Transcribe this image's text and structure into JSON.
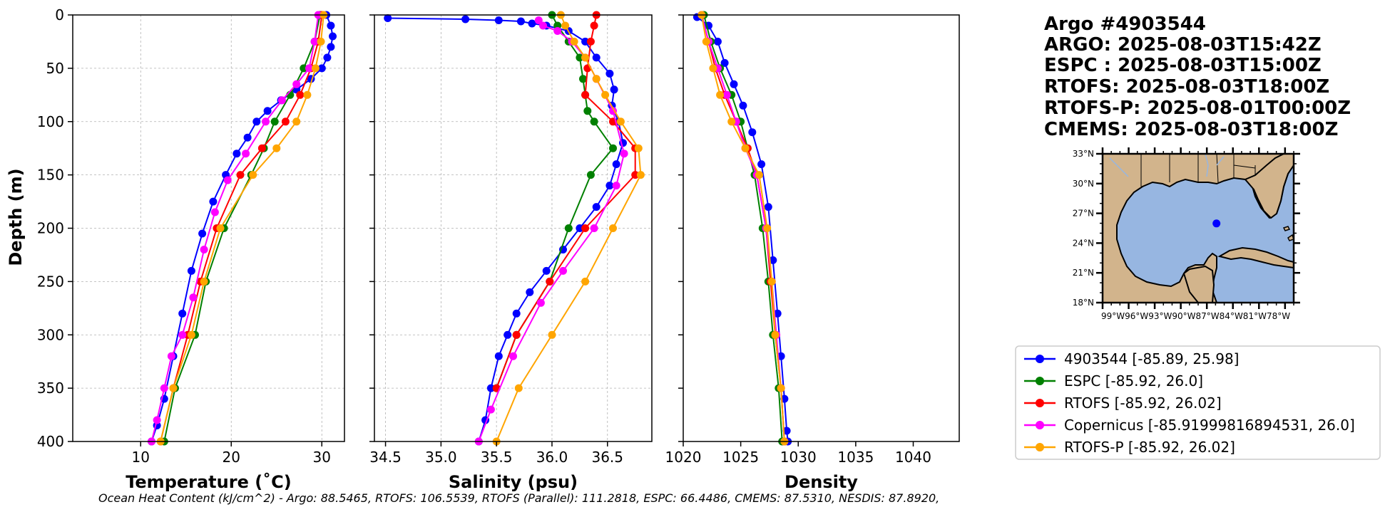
{
  "chart_data": [
    {
      "type": "line",
      "xlabel": "Temperature (˚C)",
      "ylabel": "Depth (m)",
      "xlim": [
        2.5,
        32.5
      ],
      "ylim": [
        400,
        0
      ],
      "xticks": [
        10,
        20,
        30
      ],
      "yticks": [
        0,
        50,
        100,
        150,
        200,
        250,
        300,
        350,
        400
      ],
      "grid": true,
      "series": [
        {
          "name": "4903544",
          "color": "#0000ff",
          "x": [
            30.5,
            31.0,
            31.2,
            31.0,
            30.6,
            30.0,
            28.8,
            27.2,
            25.5,
            24.0,
            22.8,
            21.8,
            20.6,
            19.4,
            18.0,
            16.8,
            15.6,
            14.6,
            13.6,
            12.6,
            11.8,
            11.2
          ],
          "y": [
            0,
            10,
            20,
            30,
            40,
            50,
            60,
            70,
            80,
            90,
            100,
            115,
            130,
            150,
            175,
            205,
            240,
            280,
            320,
            360,
            385,
            400
          ]
        },
        {
          "name": "ESPC",
          "color": "#008000",
          "x": [
            29.8,
            29.2,
            28.0,
            26.5,
            24.8,
            23.6,
            22.2,
            19.2,
            17.2,
            16.0,
            13.8,
            12.6
          ],
          "y": [
            0,
            25,
            50,
            75,
            100,
            125,
            150,
            200,
            250,
            300,
            350,
            400
          ]
        },
        {
          "name": "RTOFS",
          "color": "#ff0000",
          "x": [
            30.0,
            29.6,
            28.8,
            27.6,
            26.0,
            23.4,
            21.0,
            18.4,
            16.6,
            15.2,
            13.6,
            12.2
          ],
          "y": [
            0,
            25,
            50,
            75,
            100,
            125,
            150,
            200,
            250,
            300,
            350,
            400
          ]
        },
        {
          "name": "Copernicus",
          "color": "#ff00ff",
          "x": [
            29.6,
            29.2,
            28.6,
            27.2,
            25.6,
            23.8,
            21.6,
            19.6,
            18.2,
            17.0,
            15.8,
            14.6,
            13.4,
            12.6,
            11.8,
            11.2
          ],
          "y": [
            0,
            25,
            50,
            65,
            80,
            100,
            130,
            155,
            185,
            220,
            265,
            300,
            320,
            350,
            380,
            400
          ]
        },
        {
          "name": "RTOFS-P",
          "color": "#ffa500",
          "x": [
            30.2,
            29.9,
            29.3,
            28.4,
            27.2,
            25.0,
            22.4,
            18.8,
            17.0,
            15.6,
            13.6,
            12.2
          ],
          "y": [
            0,
            25,
            50,
            75,
            100,
            125,
            150,
            200,
            250,
            300,
            350,
            400
          ]
        }
      ]
    },
    {
      "type": "line",
      "xlabel": "Salinity (psu)",
      "xlim": [
        34.4,
        36.9
      ],
      "ylim": [
        400,
        0
      ],
      "xticks": [
        34.5,
        35.0,
        35.5,
        36.0,
        36.5
      ],
      "xtick_labels": [
        "34.5",
        "35.0",
        "35.5",
        "36.0",
        "36.5"
      ],
      "yticks": [
        0,
        50,
        100,
        150,
        200,
        250,
        300,
        350,
        400
      ],
      "grid": true,
      "series": [
        {
          "name": "4903544",
          "color": "#0000ff",
          "x": [
            34.52,
            35.22,
            35.52,
            35.72,
            35.82,
            35.95,
            36.15,
            36.3,
            36.4,
            36.52,
            36.56,
            36.54,
            36.6,
            36.64,
            36.58,
            36.52,
            36.4,
            36.25,
            36.1,
            35.95,
            35.8,
            35.68,
            35.6,
            35.52,
            35.45,
            35.4,
            35.34
          ],
          "y": [
            3,
            4,
            5,
            6,
            8,
            10,
            15,
            25,
            40,
            55,
            70,
            85,
            100,
            120,
            140,
            160,
            180,
            200,
            220,
            240,
            260,
            280,
            300,
            320,
            350,
            380,
            400
          ]
        },
        {
          "name": "ESPC",
          "color": "#008000",
          "x": [
            36.0,
            36.05,
            36.15,
            36.25,
            36.28,
            36.3,
            36.32,
            36.38,
            36.55,
            36.35,
            36.15,
            35.98,
            35.68,
            35.5
          ],
          "y": [
            0,
            10,
            25,
            40,
            60,
            75,
            90,
            100,
            125,
            150,
            200,
            250,
            300,
            350
          ]
        },
        {
          "name": "RTOFS",
          "color": "#ff0000",
          "x": [
            36.4,
            36.38,
            36.35,
            36.32,
            36.3,
            36.55,
            36.75,
            36.75,
            36.3,
            35.98,
            35.68,
            35.5
          ],
          "y": [
            0,
            10,
            25,
            50,
            75,
            100,
            125,
            150,
            200,
            250,
            300,
            350
          ]
        },
        {
          "name": "Copernicus",
          "color": "#ff00ff",
          "x": [
            35.88,
            35.92,
            36.05,
            36.18,
            36.3,
            36.4,
            36.55,
            36.65,
            36.58,
            36.38,
            36.1,
            35.9,
            35.65,
            35.45,
            35.34
          ],
          "y": [
            5,
            10,
            15,
            25,
            40,
            60,
            90,
            130,
            160,
            200,
            240,
            270,
            320,
            370,
            400
          ]
        },
        {
          "name": "RTOFS-P",
          "color": "#ffa500",
          "x": [
            36.08,
            36.12,
            36.2,
            36.3,
            36.4,
            36.48,
            36.62,
            36.78,
            36.8,
            36.55,
            36.3,
            36.0,
            35.7,
            35.5
          ],
          "y": [
            0,
            10,
            25,
            40,
            60,
            75,
            100,
            125,
            150,
            200,
            250,
            300,
            350,
            400
          ]
        }
      ]
    },
    {
      "type": "line",
      "xlabel": "Density",
      "xlim": [
        1020,
        1044
      ],
      "ylim": [
        400,
        0
      ],
      "xticks": [
        1020,
        1025,
        1030,
        1035,
        1040
      ],
      "yticks": [
        0,
        50,
        100,
        150,
        200,
        250,
        300,
        350,
        400
      ],
      "grid": false,
      "series": [
        {
          "name": "4903544",
          "color": "#0000ff",
          "x": [
            1021.2,
            1022.2,
            1023.0,
            1023.6,
            1024.4,
            1025.2,
            1026.0,
            1026.8,
            1027.4,
            1027.8,
            1028.2,
            1028.5,
            1028.8,
            1029.0,
            1029.1
          ],
          "y": [
            2,
            10,
            25,
            45,
            65,
            85,
            110,
            140,
            180,
            230,
            280,
            320,
            360,
            390,
            400
          ]
        },
        {
          "name": "ESPC",
          "color": "#008000",
          "x": [
            1021.8,
            1022.4,
            1023.2,
            1024.2,
            1025.0,
            1025.6,
            1026.2,
            1026.9,
            1027.4,
            1027.8,
            1028.3,
            1028.6
          ],
          "y": [
            0,
            25,
            50,
            75,
            100,
            125,
            150,
            200,
            250,
            300,
            350,
            400
          ]
        },
        {
          "name": "RTOFS",
          "color": "#ff0000",
          "x": [
            1021.6,
            1022.2,
            1022.8,
            1023.6,
            1024.6,
            1025.6,
            1026.4,
            1027.2,
            1027.6,
            1028.0,
            1028.5,
            1028.8
          ],
          "y": [
            0,
            25,
            50,
            75,
            100,
            125,
            150,
            200,
            250,
            300,
            350,
            400
          ]
        },
        {
          "name": "Copernicus",
          "color": "#ff00ff",
          "x": [
            1021.6,
            1022.2,
            1023.0,
            1023.8,
            1024.6,
            1025.4,
            1026.4,
            1027.2,
            1027.7,
            1028.1,
            1028.5,
            1028.8
          ],
          "y": [
            0,
            25,
            50,
            75,
            100,
            125,
            150,
            200,
            250,
            300,
            350,
            400
          ]
        },
        {
          "name": "RTOFS-P",
          "color": "#ffa500",
          "x": [
            1021.6,
            1022.0,
            1022.6,
            1023.2,
            1024.2,
            1025.4,
            1026.6,
            1027.3,
            1027.7,
            1028.0,
            1028.5,
            1028.8
          ],
          "y": [
            0,
            25,
            50,
            75,
            100,
            125,
            150,
            200,
            250,
            300,
            350,
            400
          ]
        }
      ]
    }
  ],
  "info": {
    "lines": [
      "Argo #4903544",
      "ARGO: 2025-08-03T15:42Z",
      "ESPC : 2025-08-03T15:00Z",
      "RTOFS: 2025-08-03T18:00Z",
      "RTOFS-P: 2025-08-01T00:00Z",
      "CMEMS: 2025-08-03T18:00Z"
    ]
  },
  "map": {
    "lon_range": [
      -99,
      -77
    ],
    "lat_range": [
      18,
      33
    ],
    "lat_labels": [
      {
        "value": 33,
        "label": "33°N"
      },
      {
        "value": 30,
        "label": "30°N"
      },
      {
        "value": 27,
        "label": "27°N"
      },
      {
        "value": 24,
        "label": "24°N"
      },
      {
        "value": 21,
        "label": "21°N"
      },
      {
        "value": 18,
        "label": "18°N"
      }
    ],
    "lon_labels_text": "99°W96°W93°W90°W87°W84°W81°W78°W",
    "lon_ticks": [
      -99,
      -96,
      -93,
      -90,
      -87,
      -84,
      -81,
      -78
    ],
    "marker": {
      "lon": -85.89,
      "lat": 25.98,
      "color": "#0000ff"
    },
    "ocean_color": "#97b6e1",
    "land_color": "#d2b48c"
  },
  "legend": [
    {
      "label": "4903544 [-85.89, 25.98]",
      "color": "#0000ff"
    },
    {
      "label": "ESPC [-85.92, 26.0]",
      "color": "#008000"
    },
    {
      "label": "RTOFS [-85.92, 26.02]",
      "color": "#ff0000"
    },
    {
      "label": "Copernicus [-85.91999816894531, 26.0]",
      "color": "#ff00ff"
    },
    {
      "label": "RTOFS-P [-85.92, 26.02]",
      "color": "#ffa500"
    }
  ],
  "footer": {
    "text": "Ocean Heat Content (kJ/cm^2) - Argo: 88.5465,  RTOFS: 106.5539,  RTOFS (Parallel): 111.2818,  ESPC: 66.4486,  CMEMS: 87.5310,  NESDIS: 87.8920,"
  }
}
